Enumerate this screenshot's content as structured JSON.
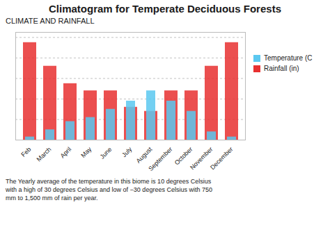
{
  "chart_data": {
    "type": "bar",
    "title": "Climatogram for Temperate Deciduous Forests",
    "subtitle": "CLIMATE AND RAINFALL",
    "annotations": [
      "The Yearly average of the temperature in this biome is 10 degrees Celsius\nwith a high of 30 degrees Celsius and low of −30 degrees Celsius with 750\nmm to 1,500 mm of rain per year."
    ],
    "categories": [
      "Feb",
      "March",
      "April",
      "May",
      "June",
      "July",
      "August",
      "September",
      "October",
      "November",
      "December"
    ],
    "series": [
      {
        "name": "Temperature (C",
        "color": "#5bc8f0",
        "values": [
          3,
          10,
          18,
          22,
          30,
          38,
          48,
          38,
          28,
          8,
          3
        ]
      },
      {
        "name": "Rainfall (in)",
        "color": "#e83030",
        "values": [
          95,
          72,
          55,
          48,
          48,
          32,
          28,
          48,
          48,
          72,
          95
        ]
      }
    ],
    "ylim": [
      0,
      105
    ],
    "yticks": [
      20,
      40,
      60,
      80,
      100
    ],
    "grid": true,
    "legend": "right",
    "tick_labels": "x"
  }
}
